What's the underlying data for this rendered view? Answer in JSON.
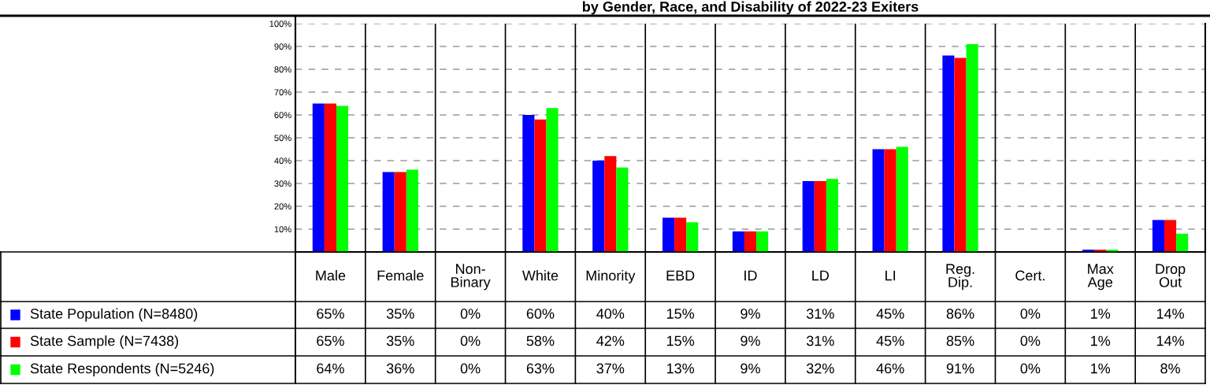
{
  "chart_data": {
    "type": "bar",
    "title": "by Gender, Race, and Disability of 2022-23 Exiters",
    "categories": [
      "Male",
      "Female",
      "Non-\nBinary",
      "White",
      "Minority",
      "EBD",
      "ID",
      "LD",
      "LI",
      "Reg.\nDip.",
      "Cert.",
      "Max\nAge",
      "Drop\nOut"
    ],
    "series": [
      {
        "name": "State Population (N=8480)",
        "color": "#0000ff",
        "values": [
          65,
          35,
          0,
          60,
          40,
          15,
          9,
          31,
          45,
          86,
          0,
          1,
          14
        ],
        "value_labels": [
          "65%",
          "35%",
          "0%",
          "60%",
          "40%",
          "15%",
          "9%",
          "31%",
          "45%",
          "86%",
          "0%",
          "1%",
          "14%"
        ]
      },
      {
        "name": "State Sample (N=7438)",
        "color": "#ff0000",
        "values": [
          65,
          35,
          0,
          58,
          42,
          15,
          9,
          31,
          45,
          85,
          0,
          1,
          14
        ],
        "value_labels": [
          "65%",
          "35%",
          "0%",
          "58%",
          "42%",
          "15%",
          "9%",
          "31%",
          "45%",
          "85%",
          "0%",
          "1%",
          "14%"
        ]
      },
      {
        "name": "State Respondents (N=5246)",
        "color": "#00ff00",
        "values": [
          64,
          36,
          0,
          63,
          37,
          13,
          9,
          32,
          46,
          91,
          0,
          1,
          8
        ],
        "value_labels": [
          "64%",
          "36%",
          "0%",
          "63%",
          "37%",
          "13%",
          "9%",
          "32%",
          "46%",
          "91%",
          "0%",
          "1%",
          "8%"
        ]
      }
    ],
    "ylim": [
      0,
      100
    ],
    "yticks": [
      {
        "value": 10,
        "label": "10%"
      },
      {
        "value": 20,
        "label": "20%"
      },
      {
        "value": 30,
        "label": "30%"
      },
      {
        "value": 40,
        "label": "40%"
      },
      {
        "value": 50,
        "label": "50%"
      },
      {
        "value": 60,
        "label": "60%"
      },
      {
        "value": 70,
        "label": "70%"
      },
      {
        "value": 80,
        "label": "80%"
      },
      {
        "value": 90,
        "label": "90%"
      },
      {
        "value": 100,
        "label": "100%"
      }
    ],
    "grid": "y",
    "legend": "bottom left"
  }
}
